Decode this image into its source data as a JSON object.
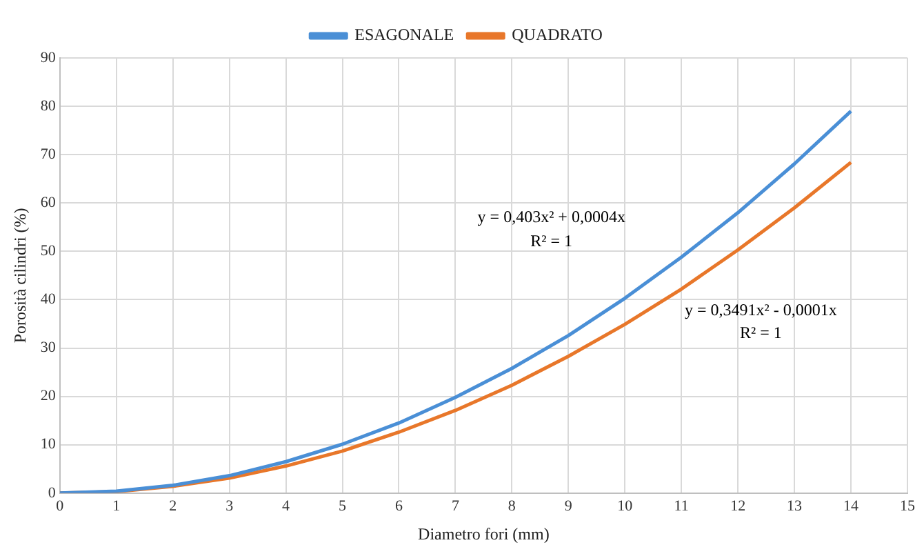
{
  "chart_data": {
    "type": "line",
    "xlabel": "Diametro fori (mm)",
    "ylabel": "Porosità cilindri (%)",
    "x": [
      0,
      1,
      2,
      3,
      4,
      5,
      6,
      7,
      8,
      9,
      10,
      11,
      12,
      13,
      14
    ],
    "series": [
      {
        "name": "ESAGONALE",
        "color": "#4a8fd6",
        "values": [
          0,
          0.4,
          1.6,
          3.6,
          6.5,
          10.1,
          14.5,
          19.8,
          25.8,
          32.6,
          40.3,
          48.8,
          58.0,
          68.1,
          79.0
        ]
      },
      {
        "name": "QUADRATO",
        "color": "#e8772a",
        "values": [
          0,
          0.3,
          1.4,
          3.1,
          5.6,
          8.7,
          12.6,
          17.1,
          22.3,
          28.3,
          34.9,
          42.2,
          50.3,
          59.0,
          68.4
        ]
      }
    ],
    "xlim": [
      0,
      15
    ],
    "xticks": [
      0,
      1,
      2,
      3,
      4,
      5,
      6,
      7,
      8,
      9,
      10,
      11,
      12,
      13,
      14,
      15
    ],
    "ylim": [
      0,
      90
    ],
    "yticks": [
      0,
      10,
      20,
      30,
      40,
      50,
      60,
      70,
      80,
      90
    ],
    "grid": true,
    "legend": "top",
    "marker": "none",
    "line_style": "solid",
    "annotations": [
      "y = 0,403x² + 0,0004x",
      "R² = 1",
      "y = 0,3491x² - 0,0001x",
      "R² = 1"
    ]
  }
}
